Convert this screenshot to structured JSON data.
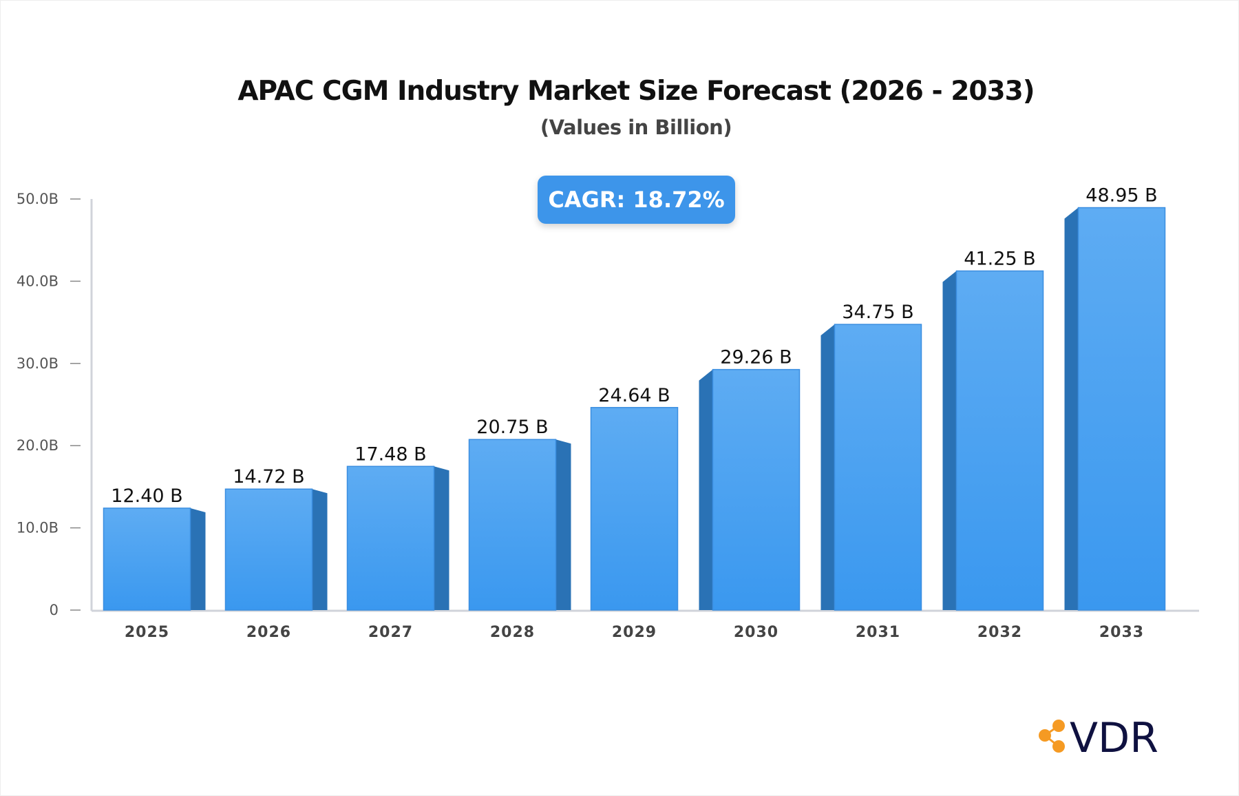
{
  "chart_data": {
    "type": "bar",
    "title": "APAC CGM Industry Market Size Forecast (2026 - 2033)",
    "subtitle": "(Values in Billion)",
    "annotation": "CAGR: 18.72%",
    "categories": [
      "2025",
      "2026",
      "2027",
      "2028",
      "2029",
      "2030",
      "2031",
      "2032",
      "2033"
    ],
    "values": [
      12.4,
      14.72,
      17.48,
      20.75,
      24.64,
      29.26,
      34.75,
      41.25,
      48.95
    ],
    "data_labels": [
      "12.40 B",
      "14.72 B",
      "17.48 B",
      "20.75 B",
      "24.64 B",
      "29.26 B",
      "34.75 B",
      "41.25 B",
      "48.95 B"
    ],
    "ylim": [
      0,
      50
    ],
    "yticks": [
      0,
      10,
      20,
      30,
      40,
      50
    ],
    "ytick_labels": [
      "0",
      "10.0B",
      "20.0B",
      "30.0B",
      "40.0B",
      "50.0B"
    ],
    "xlabel": "",
    "ylabel": "",
    "grid": false,
    "colors": {
      "bar_top": "#5eacf3",
      "bar_bottom": "#3a98ef",
      "bar_side": "#2a72b5",
      "axis": "#d0d3da",
      "badge": "#3d95ea"
    }
  },
  "brand": {
    "logo_text": "VDR",
    "logo_color": "#0f1140",
    "icon_color": "#f59a23"
  }
}
